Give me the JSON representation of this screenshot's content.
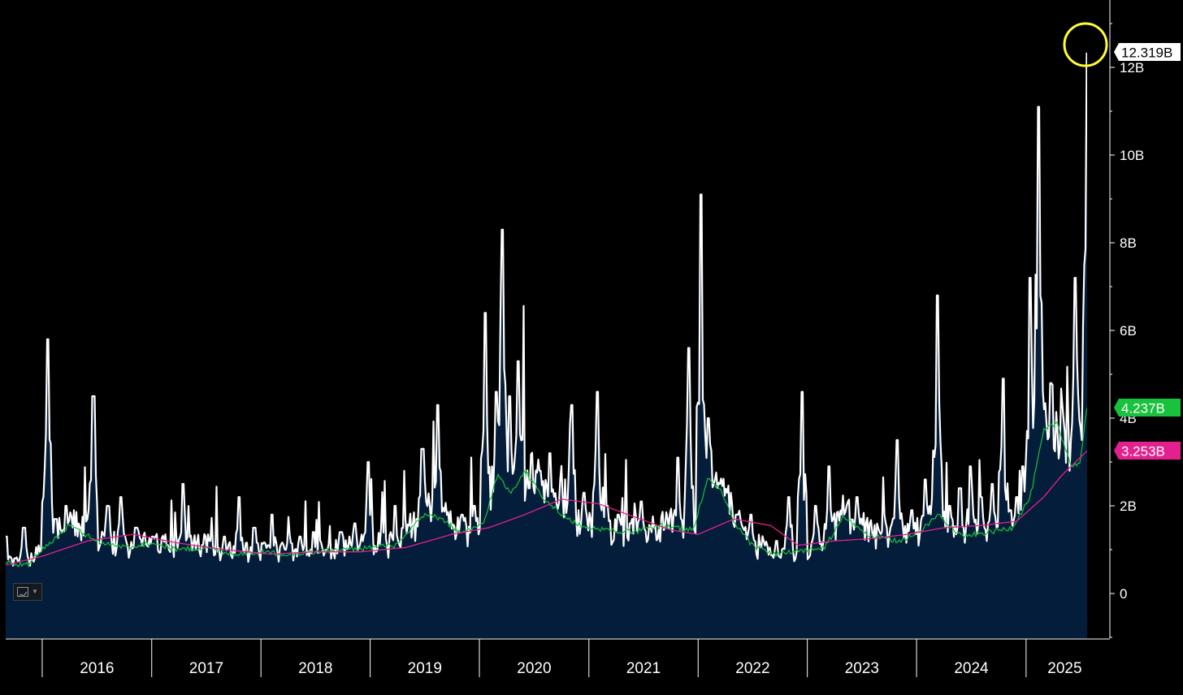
{
  "chart_data": {
    "type": "area",
    "x_range": [
      "2015-09-01",
      "2025-07-24"
    ],
    "ylim": [
      -1,
      13.5
    ],
    "y_unit": "B",
    "y_ticks": [
      0,
      2,
      4,
      6,
      8,
      10,
      12
    ],
    "y_tick_labels": [
      "0",
      "2B",
      "4B",
      "6B",
      "8B",
      "10B",
      "12B"
    ],
    "x_tick_labels": [
      "2016",
      "2017",
      "2018",
      "2019",
      "2020",
      "2021",
      "2022",
      "2023",
      "2024",
      "2025"
    ],
    "grid": false,
    "series": [
      {
        "kind": "volume-area",
        "color": "#ffffff",
        "fill": "#041d3a",
        "last_value": 12.319,
        "last_label": "12.319B",
        "x": [
          "2015-09-01",
          "2015-10-01",
          "2015-11-01",
          "2015-12-15",
          "2016-01-20",
          "2016-02-15",
          "2016-03-20",
          "2016-05-01",
          "2016-06-20",
          "2016-08-05",
          "2016-09-20",
          "2016-11-10",
          "2017-01-05",
          "2017-02-20",
          "2017-04-15",
          "2017-06-01",
          "2017-07-15",
          "2017-09-01",
          "2017-10-20",
          "2017-12-10",
          "2018-01-25",
          "2018-02-08",
          "2018-03-25",
          "2018-05-10",
          "2018-06-25",
          "2018-08-10",
          "2018-09-25",
          "2018-11-10",
          "2018-12-26",
          "2019-02-10",
          "2019-03-25",
          "2019-05-10",
          "2019-06-25",
          "2019-08-15",
          "2019-09-25",
          "2019-11-05",
          "2019-12-15",
          "2020-01-20",
          "2020-02-28",
          "2020-03-16",
          "2020-04-10",
          "2020-05-10",
          "2020-06-15",
          "2020-07-20",
          "2020-08-25",
          "2020-09-30",
          "2020-11-05",
          "2020-12-15",
          "2021-01-28",
          "2021-03-01",
          "2021-04-10",
          "2021-05-20",
          "2021-06-25",
          "2021-08-05",
          "2021-09-15",
          "2021-10-25",
          "2021-12-01",
          "2022-01-10",
          "2022-02-05",
          "2022-02-25",
          "2022-04-05",
          "2022-05-15",
          "2022-06-25",
          "2022-08-05",
          "2022-09-20",
          "2022-11-01",
          "2022-12-15",
          "2023-01-30",
          "2023-03-15",
          "2023-04-30",
          "2023-06-15",
          "2023-07-30",
          "2023-09-15",
          "2023-10-30",
          "2023-12-15",
          "2024-01-30",
          "2024-03-10",
          "2024-04-20",
          "2024-05-25",
          "2024-06-30",
          "2024-08-05",
          "2024-09-10",
          "2024-10-15",
          "2024-11-10",
          "2024-12-01",
          "2024-12-20",
          "2025-01-15",
          "2025-02-10",
          "2025-03-05",
          "2025-03-25",
          "2025-04-08",
          "2025-05-01",
          "2025-05-25",
          "2025-06-15",
          "2025-07-05",
          "2025-07-15",
          "2025-07-24"
        ],
        "values": [
          1.3,
          0.8,
          1.5,
          0.9,
          5.8,
          1.7,
          2.0,
          1.3,
          4.5,
          2.0,
          2.2,
          1.5,
          1.3,
          1.1,
          2.5,
          1.0,
          1.2,
          1.3,
          2.2,
          1.5,
          1.1,
          1.8,
          1.0,
          1.3,
          1.4,
          1.0,
          1.4,
          1.6,
          3.0,
          1.5,
          2.0,
          1.5,
          3.3,
          4.3,
          1.6,
          1.8,
          2.0,
          6.4,
          4.6,
          8.3,
          4.5,
          5.3,
          2.4,
          2.8,
          3.2,
          2.6,
          4.3,
          2.3,
          4.6,
          2.0,
          1.8,
          1.6,
          2.1,
          1.5,
          1.4,
          3.1,
          5.6,
          9.1,
          4.0,
          2.5,
          2.3,
          1.8,
          1.8,
          1.0,
          1.2,
          2.2,
          4.6,
          2.0,
          2.9,
          1.8,
          2.2,
          1.6,
          1.8,
          3.5,
          1.9,
          2.6,
          6.8,
          2.0,
          2.4,
          2.9,
          2.2,
          2.5,
          4.9,
          1.9,
          2.2,
          2.9,
          7.2,
          11.1,
          4.2,
          4.8,
          2.6,
          4.3,
          2.8,
          7.2,
          3.5,
          6.2,
          12.319
        ]
      },
      {
        "kind": "moving-average",
        "color": "#18c23c",
        "last_value": 4.237,
        "last_label": "4.237B",
        "x": [
          "2015-09-01",
          "2015-11-15",
          "2016-01-01",
          "2016-04-01",
          "2016-07-01",
          "2016-10-01",
          "2017-01-01",
          "2017-04-01",
          "2017-07-01",
          "2017-10-01",
          "2018-01-01",
          "2018-04-01",
          "2018-07-01",
          "2018-10-01",
          "2019-01-01",
          "2019-04-01",
          "2019-07-01",
          "2019-09-01",
          "2019-11-01",
          "2020-01-15",
          "2020-03-01",
          "2020-04-15",
          "2020-06-01",
          "2020-08-01",
          "2020-10-01",
          "2020-12-01",
          "2021-03-01",
          "2021-06-01",
          "2021-09-01",
          "2021-12-15",
          "2022-02-01",
          "2022-03-15",
          "2022-05-01",
          "2022-07-01",
          "2022-09-15",
          "2022-12-01",
          "2023-03-01",
          "2023-05-01",
          "2023-08-01",
          "2023-11-01",
          "2024-01-01",
          "2024-03-15",
          "2024-06-01",
          "2024-09-01",
          "2024-11-15",
          "2025-01-15",
          "2025-03-01",
          "2025-04-15",
          "2025-06-01",
          "2025-07-01",
          "2025-07-24"
        ],
        "values": [
          0.7,
          0.65,
          1.0,
          1.55,
          1.2,
          1.05,
          1.15,
          1.0,
          1.05,
          0.9,
          0.95,
          0.9,
          0.95,
          1.0,
          1.05,
          1.1,
          1.8,
          1.7,
          1.35,
          1.6,
          2.7,
          2.3,
          2.8,
          2.2,
          1.8,
          1.55,
          1.45,
          1.4,
          1.55,
          1.45,
          2.6,
          2.4,
          1.6,
          1.1,
          0.9,
          0.95,
          1.05,
          1.75,
          1.3,
          1.2,
          1.35,
          1.8,
          1.3,
          1.4,
          1.5,
          2.2,
          3.7,
          3.9,
          2.9,
          3.0,
          4.237
        ]
      },
      {
        "kind": "moving-average",
        "color": "#e4208f",
        "last_value": 3.253,
        "last_label": "3.253B",
        "x": [
          "2015-09-01",
          "2016-01-01",
          "2016-06-01",
          "2016-11-01",
          "2017-04-01",
          "2017-09-01",
          "2018-02-01",
          "2018-07-01",
          "2018-12-01",
          "2019-05-01",
          "2019-10-01",
          "2020-02-01",
          "2020-06-01",
          "2020-10-01",
          "2021-02-01",
          "2021-06-01",
          "2021-10-01",
          "2022-01-01",
          "2022-05-01",
          "2022-09-01",
          "2022-12-01",
          "2023-04-01",
          "2023-08-01",
          "2023-12-01",
          "2024-04-01",
          "2024-08-01",
          "2024-12-01",
          "2025-03-01",
          "2025-05-01",
          "2025-07-24"
        ],
        "values": [
          0.65,
          0.85,
          1.2,
          1.35,
          1.15,
          1.0,
          0.9,
          0.95,
          0.95,
          1.05,
          1.35,
          1.5,
          1.8,
          2.15,
          2.05,
          1.75,
          1.45,
          1.35,
          1.7,
          1.55,
          1.1,
          1.2,
          1.25,
          1.35,
          1.5,
          1.55,
          1.65,
          2.2,
          2.7,
          3.253
        ]
      }
    ]
  },
  "toolbar": {
    "chart_type_icon": "line-chart-icon",
    "menu_icon": "chevron-down-icon"
  },
  "annotation": {
    "kind": "circle",
    "color": "#ffff33",
    "target": "latest volume spike"
  }
}
